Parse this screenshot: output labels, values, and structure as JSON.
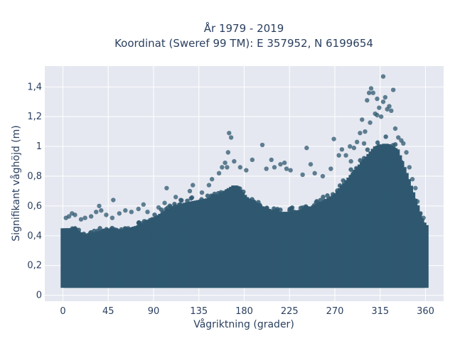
{
  "chart_data": {
    "type": "scatter",
    "title_line1": "År 1979 - 2019",
    "title_line2": "Koordinat (Sweref 99 TM): E 357952, N 6199654",
    "xlabel": "Vågriktning (grader)",
    "ylabel": "Signifikant våghöjd (m)",
    "xlim": [
      -18,
      378
    ],
    "ylim": [
      -0.04,
      1.54
    ],
    "xticks": [
      0,
      45,
      90,
      135,
      180,
      225,
      270,
      315,
      360
    ],
    "xtick_labels": [
      "0",
      "45",
      "90",
      "135",
      "180",
      "225",
      "270",
      "315",
      "360"
    ],
    "yticks": [
      0,
      0.2,
      0.4,
      0.6,
      0.8,
      1.0,
      1.2,
      1.4
    ],
    "ytick_labels": [
      "0",
      "0,2",
      "0,4",
      "0,6",
      "0,8",
      "1",
      "1,2",
      "1,4"
    ],
    "grid": true,
    "colors": {
      "marker": "#2f5870",
      "plot_bg": "#e5e8f0",
      "grid": "#ffffff"
    },
    "band_lower_bound": [
      [
        0,
        0.05
      ],
      [
        360,
        0.05
      ]
    ],
    "band_upper_bound": [
      [
        0,
        0.45
      ],
      [
        10,
        0.45
      ],
      [
        20,
        0.4
      ],
      [
        30,
        0.42
      ],
      [
        45,
        0.45
      ],
      [
        60,
        0.44
      ],
      [
        75,
        0.47
      ],
      [
        90,
        0.52
      ],
      [
        105,
        0.58
      ],
      [
        120,
        0.62
      ],
      [
        135,
        0.64
      ],
      [
        150,
        0.66
      ],
      [
        160,
        0.7
      ],
      [
        170,
        0.74
      ],
      [
        180,
        0.66
      ],
      [
        195,
        0.6
      ],
      [
        210,
        0.56
      ],
      [
        225,
        0.56
      ],
      [
        240,
        0.58
      ],
      [
        255,
        0.62
      ],
      [
        270,
        0.68
      ],
      [
        285,
        0.8
      ],
      [
        300,
        0.92
      ],
      [
        310,
        1.0
      ],
      [
        320,
        1.02
      ],
      [
        330,
        0.98
      ],
      [
        340,
        0.8
      ],
      [
        350,
        0.6
      ],
      [
        355,
        0.5
      ],
      [
        360,
        0.46
      ]
    ],
    "outliers": [
      [
        3,
        0.52
      ],
      [
        6,
        0.53
      ],
      [
        9,
        0.55
      ],
      [
        12,
        0.54
      ],
      [
        18,
        0.51
      ],
      [
        22,
        0.52
      ],
      [
        28,
        0.53
      ],
      [
        33,
        0.56
      ],
      [
        36,
        0.6
      ],
      [
        38,
        0.57
      ],
      [
        43,
        0.54
      ],
      [
        49,
        0.52
      ],
      [
        50,
        0.64
      ],
      [
        56,
        0.55
      ],
      [
        62,
        0.57
      ],
      [
        68,
        0.56
      ],
      [
        75,
        0.58
      ],
      [
        80,
        0.61
      ],
      [
        84,
        0.56
      ],
      [
        95,
        0.59
      ],
      [
        101,
        0.62
      ],
      [
        103,
        0.72
      ],
      [
        112,
        0.66
      ],
      [
        117,
        0.64
      ],
      [
        126,
        0.7
      ],
      [
        129,
        0.74
      ],
      [
        138,
        0.69
      ],
      [
        145,
        0.74
      ],
      [
        148,
        0.78
      ],
      [
        155,
        0.82
      ],
      [
        158,
        0.86
      ],
      [
        161,
        0.89
      ],
      [
        163,
        0.86
      ],
      [
        164,
        0.96
      ],
      [
        165,
        1.09
      ],
      [
        167,
        1.06
      ],
      [
        170,
        0.9
      ],
      [
        176,
        0.86
      ],
      [
        182,
        0.84
      ],
      [
        188,
        0.91
      ],
      [
        198,
        1.01
      ],
      [
        202,
        0.85
      ],
      [
        207,
        0.91
      ],
      [
        210,
        0.86
      ],
      [
        216,
        0.88
      ],
      [
        220,
        0.89
      ],
      [
        222,
        0.85
      ],
      [
        226,
        0.84
      ],
      [
        238,
        0.81
      ],
      [
        242,
        0.99
      ],
      [
        246,
        0.88
      ],
      [
        250,
        0.82
      ],
      [
        258,
        0.8
      ],
      [
        266,
        0.85
      ],
      [
        269,
        1.05
      ],
      [
        274,
        0.94
      ],
      [
        277,
        0.98
      ],
      [
        281,
        0.94
      ],
      [
        285,
        1.0
      ],
      [
        289,
        0.99
      ],
      [
        292,
        1.03
      ],
      [
        295,
        1.09
      ],
      [
        297,
        1.18
      ],
      [
        300,
        1.1
      ],
      [
        302,
        1.31
      ],
      [
        304,
        1.36
      ],
      [
        306,
        1.39
      ],
      [
        308,
        1.36
      ],
      [
        310,
        1.22
      ],
      [
        312,
        1.32
      ],
      [
        314,
        1.26
      ],
      [
        316,
        1.2
      ],
      [
        318,
        1.3
      ],
      [
        320,
        1.33
      ],
      [
        322,
        1.25
      ],
      [
        324,
        1.27
      ],
      [
        326,
        1.24
      ],
      [
        328,
        1.38
      ],
      [
        330,
        1.12
      ],
      [
        333,
        1.06
      ],
      [
        336,
        1.04
      ],
      [
        338,
        1.02
      ],
      [
        341,
        0.96
      ],
      [
        344,
        0.86
      ],
      [
        347,
        0.78
      ],
      [
        350,
        0.72
      ],
      [
        352,
        0.63
      ],
      [
        355,
        0.55
      ],
      [
        358,
        0.52
      ],
      [
        318,
        1.47
      ],
      [
        312,
        1.21
      ],
      [
        299,
        1.02
      ],
      [
        286,
        0.9
      ],
      [
        305,
        1.16
      ]
    ]
  }
}
